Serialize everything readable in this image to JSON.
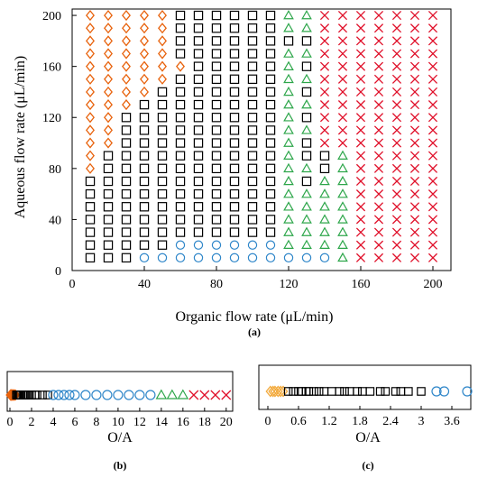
{
  "colors": {
    "diamond": "#E8620C",
    "diamond_light": "#F2A93B",
    "square": "#000000",
    "circle": "#2E86C9",
    "triangle": "#2DA64A",
    "cross": "#E0102A"
  },
  "panels": [
    {
      "id": "a",
      "label": "(a)"
    },
    {
      "id": "b",
      "label": "(b)"
    },
    {
      "id": "c",
      "label": "(c)"
    }
  ],
  "chart_data": [
    {
      "panel": "a",
      "type": "scatter",
      "xlabel": "Organic flow rate (μL/min)",
      "ylabel": "Aqueous flow rate (μL/min)",
      "xlim": [
        0,
        210
      ],
      "ylim": [
        0,
        205
      ],
      "xticks": [
        0,
        40,
        80,
        120,
        160,
        200
      ],
      "yticks": [
        0,
        40,
        80,
        120,
        160,
        200
      ],
      "grid": false,
      "legend": "none",
      "x": [
        10,
        20,
        30,
        40,
        50,
        60,
        70,
        80,
        90,
        100,
        110,
        120,
        130,
        140,
        150,
        160,
        170,
        180,
        190,
        200
      ],
      "y": [
        10,
        20,
        30,
        40,
        50,
        60,
        70,
        80,
        90,
        100,
        110,
        120,
        130,
        140,
        150,
        160,
        170,
        180,
        190,
        200
      ],
      "marker_codes": {
        "D": "diamond",
        "S": "square",
        "O": "circle",
        "T": "triangle",
        "X": "cross"
      },
      "rows_top_to_bottom": [
        "DDDDDSSSSSSTTXXXXXXX",
        "DDDDDSSSSSSTTXXXXXXX",
        "DDDDDSSSSSSSSXXXXXXX",
        "DDDDDSSSSSSTTXXXXXXX",
        "DDDDDDSSSSSTSXXXXXXX",
        "DDDDDSSSSSSTTXXXXXXX",
        "DDDDSSSSSSSTSXXXXXXX",
        "DDDSSSSSSSSTTXXXXXXX",
        "DDSSSSSSSSSTSXXXXXXX",
        "DDSSSSSSSSSTTXXXXXXX",
        "DDSSSSSSSSSTSXXXXXXX",
        "DSSSSSSSSSSTSSTXXXXX",
        "DSSSSSSSSSSTTSTXXXXX",
        "SSSSSSSSSSSTSTTXXXXX",
        "SSSSSSSSSSSTTTTXXXXX",
        "SSSSSSSSSSSTTTTXXXXX",
        "SSSSSSSSSSSTTTTXXXXX",
        "SSSSSSSSSSSTTTTXXXXX",
        "SSSSSOOOOOOTTTTXXXXX",
        "SSSOOOOOOOOOOOTXXXXX"
      ]
    },
    {
      "panel": "b",
      "type": "scatter",
      "xlabel": "O/A",
      "xlim": [
        0,
        20.6
      ],
      "xticks": [
        0,
        2,
        4,
        6,
        8,
        10,
        12,
        14,
        16,
        18,
        20
      ],
      "y_axis": "none",
      "series": [
        {
          "marker": "diamond",
          "x": [
            0.05,
            0.1,
            0.14,
            0.2,
            0.25,
            0.33,
            0.4,
            0.5
          ]
        },
        {
          "marker": "square",
          "x": [
            0.6,
            0.7,
            0.8,
            0.9,
            1.0,
            1.2,
            1.4,
            1.5,
            1.75,
            2.0,
            2.33,
            2.5,
            3.0,
            3.5
          ]
        },
        {
          "marker": "circle",
          "x": [
            4.0,
            4.5,
            5.0,
            5.5,
            6.0,
            7.0,
            8.0,
            9.0,
            10.0,
            11.0,
            12.0,
            13.0
          ]
        },
        {
          "marker": "triangle",
          "x": [
            14.0,
            15.0,
            16.0
          ]
        },
        {
          "marker": "cross",
          "x": [
            17.0,
            18.0,
            19.0,
            20.0
          ]
        }
      ]
    },
    {
      "panel": "c",
      "type": "scatter",
      "xlabel": "O/A",
      "xlim": [
        0,
        3.9
      ],
      "xticks": [
        "0",
        "0.6",
        "1.2",
        "1.8",
        "2.4",
        "3",
        "3.6"
      ],
      "y_axis": "none",
      "series": [
        {
          "marker": "diamond",
          "x": [
            0.05,
            0.1,
            0.14,
            0.2,
            0.25,
            0.3
          ]
        },
        {
          "marker": "square",
          "x": [
            0.4,
            0.5,
            0.6,
            0.67,
            0.75,
            0.8,
            0.9,
            1.0,
            1.1,
            1.25,
            1.4,
            1.5,
            1.6,
            1.75,
            1.85,
            2.0,
            2.2,
            2.3,
            2.5,
            2.6,
            2.75,
            3.0
          ]
        },
        {
          "marker": "circle",
          "x": [
            3.3,
            3.45,
            3.9
          ]
        }
      ]
    }
  ]
}
